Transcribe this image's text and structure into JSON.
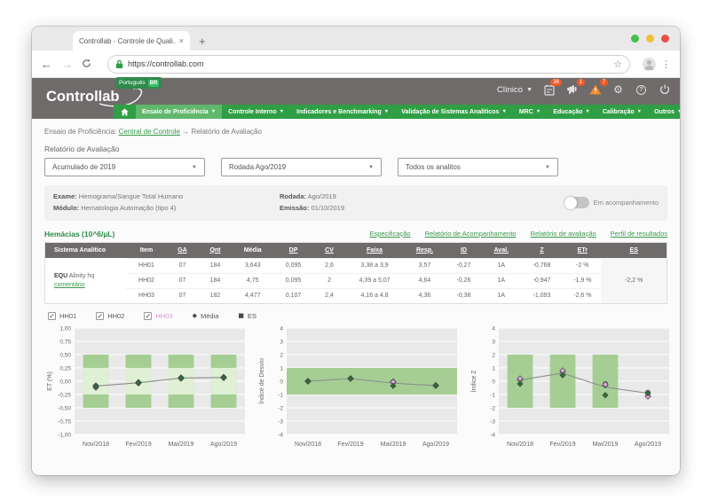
{
  "browser": {
    "tab_title": "Controllab - Controle de Quali...",
    "tab_close": "×",
    "new_tab": "+",
    "url": "https://controllab.com"
  },
  "header": {
    "logo": "Controllab",
    "language_badge": {
      "label": "Português",
      "chip": "BR"
    },
    "user_menu": "Clínico",
    "badges": {
      "tasks": "36",
      "announcements": "1",
      "alerts": "7"
    }
  },
  "nav": {
    "items": [
      {
        "label": "Ensaio de Proficiência"
      },
      {
        "label": "Controle Interno"
      },
      {
        "label": "Indicadores e Benchmarking"
      },
      {
        "label": "Validação de Sistemas Analíticos"
      },
      {
        "label": "MRC"
      },
      {
        "label": "Educação"
      },
      {
        "label": "Calibração"
      },
      {
        "label": "Outros"
      }
    ]
  },
  "breadcrumb": {
    "prefix": "Ensaio de Proficiência:",
    "link": "Central de Controle",
    "arrow": "→",
    "current": "Relatório de Avaliação"
  },
  "filters": {
    "title": "Relatório de Avaliação",
    "selects": [
      "Acumulado de 2019",
      "Rodada Ago/2019",
      "Todos os analitos"
    ]
  },
  "info": {
    "exame_label": "Exame:",
    "exame": "Hemograma/Sangue Total Humano",
    "modulo_label": "Módulo:",
    "modulo": "Hematologia Automação (tipo 4)",
    "rodada_label": "Rodada:",
    "rodada": "Ago/2019",
    "emissao_label": "Emissão:",
    "emissao": "01/10/2019",
    "toggle_label": "Em acompanhamento"
  },
  "analyte": {
    "name": "Hemácias (10^6/µL)",
    "links": [
      "Especificação",
      "Relatório de Acompanhamento",
      "Relatório de avaliação",
      "Perfil de resultados"
    ]
  },
  "table": {
    "columns": [
      "Sistema Analítico",
      "Item",
      "GA",
      "Qnt",
      "Média",
      "DP",
      "CV",
      "Faixa",
      "Resp.",
      "ID",
      "Aval.",
      "Z",
      "ETr",
      "ES"
    ],
    "system": {
      "code": "EQU",
      "name": " Alinity hq",
      "comment_link": "comentário"
    },
    "rows": [
      [
        "HH01",
        "07",
        "184",
        "3,643",
        "0,095",
        "2,6",
        "3,38 a 3,9",
        "3,57",
        "-0,27",
        "1A",
        "-0,768",
        "-2 %"
      ],
      [
        "HH02",
        "07",
        "184",
        "4,75",
        "0,095",
        "2",
        "4,39 a 5,07",
        "4,64",
        "-0,26",
        "1A",
        "-0,947",
        "-1,9 %"
      ],
      [
        "HH03",
        "07",
        "182",
        "4,477",
        "0,107",
        "2,4",
        "4,16 a 4,8",
        "4,36",
        "-0,38",
        "1A",
        "-1,093",
        "-2,6 %"
      ]
    ],
    "es_value": "-2,2 %"
  },
  "legend": {
    "checkboxes": [
      {
        "label": "HH01",
        "checked": true
      },
      {
        "label": "HH02",
        "checked": true
      },
      {
        "label": "HH03",
        "checked": true
      }
    ],
    "markers": [
      {
        "label": "Média"
      },
      {
        "label": "ES"
      }
    ]
  },
  "colors": {
    "nav_green": "#2f9e44",
    "nav_active": "#61b76c",
    "link_green": "#3a9a4d",
    "badge_orange": "#f05a28",
    "plot_bg": "#e9e9e9",
    "grid": "#ffffff",
    "band_outer": "#a6ce94",
    "band_inner": "#dff0d4",
    "line": "#8b8b8b",
    "marker_pink": "#d9a9da",
    "marker_green": "#2c6e33",
    "marker_stroke": "#4a4a4a"
  },
  "chart_data": [
    {
      "type": "line",
      "ylabel": "ET (%)",
      "ylim": [
        -1,
        1
      ],
      "yticks": [
        1,
        0.75,
        0.5,
        0.25,
        0,
        -0.25,
        -0.5,
        -0.75,
        -1
      ],
      "ytick_labels": [
        "1,00",
        "0,75",
        "0,50",
        "0,25",
        "0,00",
        "-0,25",
        "-0,50",
        "-0,75",
        "-1,00"
      ],
      "categories": [
        "Nov/2018",
        "Fev/2019",
        "Mai/2019",
        "Ago/2019"
      ],
      "bands": {
        "type": "category",
        "cats": [
          0,
          1,
          2,
          3
        ],
        "outer": [
          -0.5,
          0.5
        ],
        "inner": [
          -0.25,
          0.25
        ]
      },
      "line": [
        -0.09,
        -0.03,
        0.06,
        0.07
      ],
      "series": [
        {
          "name": "HH01",
          "marker": "diamond",
          "color": "pink",
          "values": [
            -0.08,
            -0.02,
            0.07,
            0.08
          ]
        },
        {
          "name": "HH02",
          "marker": "diamond",
          "color": "pink",
          "values": [
            -0.1,
            -0.04,
            0.05,
            0.06
          ]
        },
        {
          "name": "HH03",
          "marker": "diamond",
          "color": "pink",
          "values": [
            -0.12,
            -0.02,
            0.06,
            0.07
          ]
        },
        {
          "name": "Média",
          "marker": "diamond",
          "color": "green",
          "values": [
            -0.1,
            -0.03,
            0.06,
            0.07
          ]
        }
      ]
    },
    {
      "type": "line",
      "ylabel": "Índice de Desvio",
      "ylim": [
        -4,
        4
      ],
      "yticks": [
        4,
        3,
        2,
        1,
        0,
        -1,
        -2,
        -3,
        -4
      ],
      "ytick_labels": [
        "4",
        "3",
        "2",
        "1",
        "0",
        "-1",
        "-2",
        "-3",
        "-4"
      ],
      "categories": [
        "Nov/2018",
        "Fev/2019",
        "Mai/2019",
        "Ago/2019"
      ],
      "bands": {
        "type": "full",
        "range": [
          -1,
          1
        ]
      },
      "line": [
        0,
        0.2,
        -0.15,
        -0.33
      ],
      "series": [
        {
          "name": "HH01",
          "marker": "diamond",
          "color": "pink",
          "values": [
            0.02,
            0.22,
            -0.02,
            -0.3
          ]
        },
        {
          "name": "HH02",
          "marker": "diamond",
          "color": "pink",
          "values": [
            -0.02,
            0.18,
            -0.08,
            -0.35
          ]
        },
        {
          "name": "HH03",
          "marker": "diamond",
          "color": "pink",
          "values": [
            0.0,
            0.2,
            -0.05,
            -0.32
          ]
        },
        {
          "name": "Média",
          "marker": "diamond",
          "color": "green",
          "values": [
            -0.02,
            0.2,
            -0.35,
            -0.33
          ]
        }
      ]
    },
    {
      "type": "line",
      "ylabel": "Índice Z",
      "ylim": [
        -4,
        4
      ],
      "yticks": [
        4,
        3,
        2,
        1,
        0,
        -1,
        -2,
        -3,
        -4
      ],
      "ytick_labels": [
        "4",
        "3",
        "2",
        "1",
        "0",
        "-1",
        "-2",
        "-3",
        "-4"
      ],
      "categories": [
        "Nov/2018",
        "Fev/2019",
        "Mai/2019",
        "Ago/2019"
      ],
      "bands": {
        "type": "category",
        "cats": [
          0,
          1,
          2
        ],
        "outer": [
          -2,
          2
        ]
      },
      "line": [
        0.1,
        0.6,
        -0.45,
        -0.9
      ],
      "series": [
        {
          "name": "HH01",
          "marker": "circle",
          "color": "pink",
          "values": [
            0.15,
            0.75,
            -0.2,
            -0.85
          ]
        },
        {
          "name": "HH02",
          "marker": "diamond",
          "color": "pink",
          "values": [
            0.1,
            0.7,
            -0.3,
            -1.1
          ]
        },
        {
          "name": "HH03",
          "marker": "diamond",
          "color": "pink",
          "values": [
            0.2,
            0.8,
            -0.25,
            -1.15
          ]
        },
        {
          "name": "Média",
          "marker": "diamond",
          "color": "green",
          "values": [
            -0.2,
            0.45,
            -1.05,
            -0.9
          ]
        }
      ]
    }
  ]
}
